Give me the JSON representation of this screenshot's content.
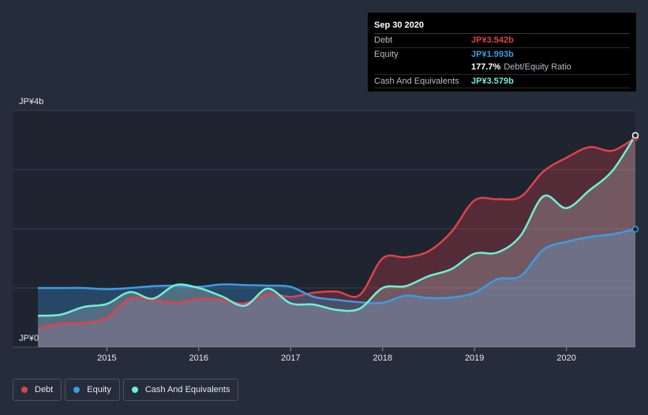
{
  "chart_data": {
    "type": "area",
    "ylabel_top": "JP¥4b",
    "ylabel_bottom": "JP¥0",
    "ylim": [
      0,
      4
    ],
    "xlim": [
      2014.25,
      2020.75
    ],
    "x_ticks": [
      "2015",
      "2016",
      "2017",
      "2018",
      "2019",
      "2020"
    ],
    "x_tick_values": [
      2015,
      2016,
      2017,
      2018,
      2019,
      2020
    ],
    "series": [
      {
        "name": "Debt",
        "color": "#e0414b",
        "points": [
          [
            2014.25,
            0.32
          ],
          [
            2014.5,
            0.4
          ],
          [
            2014.75,
            0.41
          ],
          [
            2015.0,
            0.5
          ],
          [
            2015.25,
            0.82
          ],
          [
            2015.5,
            0.8
          ],
          [
            2015.75,
            0.75
          ],
          [
            2016.0,
            0.82
          ],
          [
            2016.25,
            0.8
          ],
          [
            2016.5,
            0.74
          ],
          [
            2016.75,
            0.9
          ],
          [
            2017.0,
            0.85
          ],
          [
            2017.25,
            0.92
          ],
          [
            2017.5,
            0.94
          ],
          [
            2017.75,
            0.88
          ],
          [
            2018.0,
            1.5
          ],
          [
            2018.25,
            1.52
          ],
          [
            2018.5,
            1.62
          ],
          [
            2018.75,
            1.95
          ],
          [
            2019.0,
            2.48
          ],
          [
            2019.25,
            2.5
          ],
          [
            2019.5,
            2.54
          ],
          [
            2019.75,
            2.97
          ],
          [
            2020.0,
            3.2
          ],
          [
            2020.25,
            3.38
          ],
          [
            2020.5,
            3.32
          ],
          [
            2020.75,
            3.542
          ]
        ]
      },
      {
        "name": "Equity",
        "color": "#3c9ce3",
        "points": [
          [
            2014.25,
            1.0
          ],
          [
            2014.5,
            1.0
          ],
          [
            2014.75,
            1.0
          ],
          [
            2015.0,
            0.98
          ],
          [
            2015.25,
            1.0
          ],
          [
            2015.5,
            1.03
          ],
          [
            2015.75,
            1.04
          ],
          [
            2016.0,
            1.02
          ],
          [
            2016.25,
            1.06
          ],
          [
            2016.5,
            1.05
          ],
          [
            2016.75,
            1.04
          ],
          [
            2017.0,
            1.02
          ],
          [
            2017.25,
            0.85
          ],
          [
            2017.5,
            0.8
          ],
          [
            2017.75,
            0.76
          ],
          [
            2018.0,
            0.75
          ],
          [
            2018.25,
            0.87
          ],
          [
            2018.5,
            0.83
          ],
          [
            2018.75,
            0.84
          ],
          [
            2019.0,
            0.92
          ],
          [
            2019.25,
            1.15
          ],
          [
            2019.5,
            1.2
          ],
          [
            2019.75,
            1.65
          ],
          [
            2020.0,
            1.78
          ],
          [
            2020.25,
            1.86
          ],
          [
            2020.5,
            1.91
          ],
          [
            2020.75,
            1.993
          ]
        ]
      },
      {
        "name": "Cash And Equivalents",
        "color": "#6ff0d6",
        "points": [
          [
            2014.25,
            0.53
          ],
          [
            2014.5,
            0.55
          ],
          [
            2014.75,
            0.68
          ],
          [
            2015.0,
            0.73
          ],
          [
            2015.25,
            0.93
          ],
          [
            2015.5,
            0.82
          ],
          [
            2015.75,
            1.05
          ],
          [
            2016.0,
            1.0
          ],
          [
            2016.25,
            0.86
          ],
          [
            2016.5,
            0.7
          ],
          [
            2016.75,
            0.99
          ],
          [
            2017.0,
            0.74
          ],
          [
            2017.25,
            0.72
          ],
          [
            2017.5,
            0.63
          ],
          [
            2017.75,
            0.65
          ],
          [
            2018.0,
            1.0
          ],
          [
            2018.25,
            1.03
          ],
          [
            2018.5,
            1.2
          ],
          [
            2018.75,
            1.32
          ],
          [
            2019.0,
            1.58
          ],
          [
            2019.25,
            1.6
          ],
          [
            2019.5,
            1.88
          ],
          [
            2019.75,
            2.55
          ],
          [
            2020.0,
            2.35
          ],
          [
            2020.25,
            2.65
          ],
          [
            2020.5,
            2.98
          ],
          [
            2020.75,
            3.579
          ]
        ]
      }
    ]
  },
  "tooltip": {
    "date": "Sep 30 2020",
    "debt_label": "Debt",
    "debt_value": "JP¥3.542b",
    "equity_label": "Equity",
    "equity_value": "JP¥1.993b",
    "ratio_value": "177.7%",
    "ratio_label": "Debt/Equity Ratio",
    "cash_label": "Cash And Equivalents",
    "cash_value": "JP¥3.579b"
  },
  "legend": [
    {
      "label": "Debt",
      "color": "#e0414b"
    },
    {
      "label": "Equity",
      "color": "#3c9ce3"
    },
    {
      "label": "Cash And Equivalents",
      "color": "#6ff0d6"
    }
  ]
}
